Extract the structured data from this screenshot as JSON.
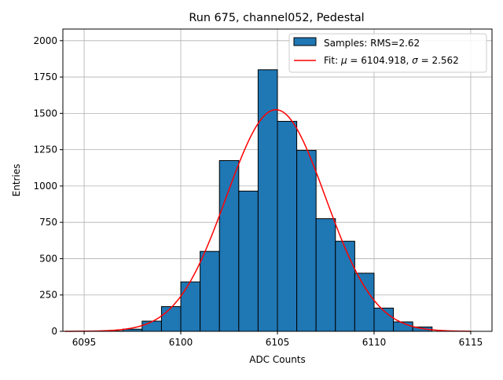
{
  "chart_data": {
    "type": "bar",
    "title": "Run 675, channel052, Pedestal",
    "xlabel": "ADC Counts",
    "ylabel": "Entries",
    "xlim": [
      6093.9,
      6116.1
    ],
    "ylim": [
      0,
      2080
    ],
    "xticks": [
      6095,
      6100,
      6105,
      6110,
      6115
    ],
    "yticks": [
      0,
      250,
      500,
      750,
      1000,
      1250,
      1500,
      1750,
      2000
    ],
    "grid": true,
    "legend_position": "top-right",
    "histogram": {
      "name": "Samples: RMS=2.62",
      "color": "#1f77b4",
      "bin_width": 1,
      "bins": [
        {
          "left": 6096,
          "count": 2
        },
        {
          "left": 6097,
          "count": 15
        },
        {
          "left": 6098,
          "count": 70
        },
        {
          "left": 6099,
          "count": 170
        },
        {
          "left": 6100,
          "count": 340
        },
        {
          "left": 6101,
          "count": 550
        },
        {
          "left": 6102,
          "count": 1175
        },
        {
          "left": 6103,
          "count": 965
        },
        {
          "left": 6104,
          "count": 1800
        },
        {
          "left": 6105,
          "count": 1445
        },
        {
          "left": 6106,
          "count": 1245
        },
        {
          "left": 6107,
          "count": 775
        },
        {
          "left": 6108,
          "count": 620
        },
        {
          "left": 6109,
          "count": 400
        },
        {
          "left": 6110,
          "count": 160
        },
        {
          "left": 6111,
          "count": 65
        },
        {
          "left": 6112,
          "count": 30
        }
      ]
    },
    "fit": {
      "name_prefix": "Fit: ",
      "mu_symbol": "μ",
      "mu": 6104.918,
      "sigma_symbol": "σ",
      "sigma": 2.562,
      "amplitude": 1525,
      "x_range": [
        6094,
        6115
      ],
      "color": "#ff0000"
    }
  }
}
